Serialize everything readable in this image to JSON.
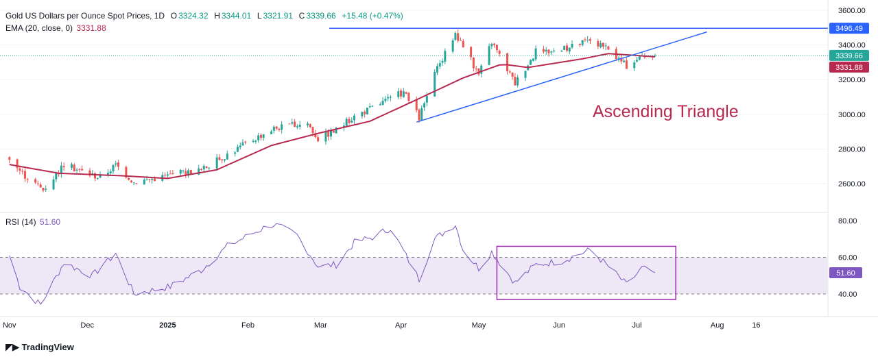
{
  "header": {
    "symbol": "Gold US Dollars per Ounce Spot Prices, 1D",
    "open_label": "O",
    "open": "3324.32",
    "high_label": "H",
    "high": "3344.01",
    "low_label": "L",
    "low": "3321.91",
    "close_label": "C",
    "close": "3339.66",
    "change": "+15.48 (+0.47%)",
    "ema_label": "EMA (20, close, 0)",
    "ema_value": "3331.88",
    "rsi_label": "RSI (14)",
    "rsi_value": "51.60"
  },
  "branding": {
    "logo_text": "TradingView"
  },
  "colors": {
    "up": "#26a69a",
    "down": "#ef5350",
    "ema": "#b7294f",
    "trend": "#2962ff",
    "rsi": "#7e57c2",
    "rsi_band": "#ede7f6",
    "annotation": "#b7294f"
  },
  "chart_data": [
    {
      "type": "candlestick",
      "title": "Gold US Dollars per Ounce Spot Prices, 1D",
      "y_ticks": [
        "2600.00",
        "2800.00",
        "3000.00",
        "3200.00",
        "3400.00",
        "3600.00"
      ],
      "ylim": [
        2450,
        3600
      ],
      "x_ticks": [
        "Nov",
        "Dec",
        "2025",
        "Feb",
        "Mar",
        "Apr",
        "May",
        "Jun",
        "Jul",
        "Aug",
        "16"
      ],
      "price_labels": {
        "resistance": "3496.49",
        "last": "3339.66",
        "ema": "3331.88"
      },
      "annotation": "Ascending Triangle",
      "resistance_level": 3496.49,
      "trendline": {
        "from": [
          "2025-04-07",
          2955
        ],
        "to": [
          "2025-07-28",
          3475
        ]
      },
      "ema_series_anchors": [
        [
          "2024-11-01",
          2710
        ],
        [
          "2024-11-20",
          2660
        ],
        [
          "2024-12-15",
          2645
        ],
        [
          "2025-01-01",
          2630
        ],
        [
          "2025-01-20",
          2680
        ],
        [
          "2025-02-10",
          2820
        ],
        [
          "2025-02-28",
          2890
        ],
        [
          "2025-03-20",
          2960
        ],
        [
          "2025-04-05",
          3070
        ],
        [
          "2025-04-25",
          3210
        ],
        [
          "2025-05-10",
          3290
        ],
        [
          "2025-05-20",
          3270
        ],
        [
          "2025-06-10",
          3320
        ],
        [
          "2025-06-20",
          3350
        ],
        [
          "2025-07-08",
          3331.88
        ]
      ],
      "close_anchors": [
        [
          "2024-11-01",
          2745
        ],
        [
          "2024-11-06",
          2660
        ],
        [
          "2024-11-14",
          2565
        ],
        [
          "2024-11-22",
          2710
        ],
        [
          "2024-12-06",
          2635
        ],
        [
          "2024-12-12",
          2710
        ],
        [
          "2024-12-19",
          2610
        ],
        [
          "2025-01-02",
          2650
        ],
        [
          "2025-01-14",
          2680
        ],
        [
          "2025-01-24",
          2770
        ],
        [
          "2025-02-07",
          2890
        ],
        [
          "2025-02-11",
          2920
        ],
        [
          "2025-02-24",
          2950
        ],
        [
          "2025-02-28",
          2860
        ],
        [
          "2025-03-07",
          2910
        ],
        [
          "2025-03-14",
          2990
        ],
        [
          "2025-03-21",
          3040
        ],
        [
          "2025-04-02",
          3130
        ],
        [
          "2025-04-08",
          2980
        ],
        [
          "2025-04-14",
          3230
        ],
        [
          "2025-04-22",
          3470
        ],
        [
          "2025-05-01",
          3230
        ],
        [
          "2025-05-06",
          3420
        ],
        [
          "2025-05-15",
          3180
        ],
        [
          "2025-05-23",
          3360
        ],
        [
          "2025-06-02",
          3370
        ],
        [
          "2025-06-13",
          3430
        ],
        [
          "2025-06-20",
          3370
        ],
        [
          "2025-06-27",
          3280
        ],
        [
          "2025-07-03",
          3340
        ],
        [
          "2025-07-08",
          3339.66
        ]
      ],
      "series": [
        {
          "name": "EMA (20, close, 0)"
        }
      ]
    },
    {
      "type": "line",
      "title": "RSI (14)",
      "y_ticks": [
        "40.00",
        "60.00",
        "80.00"
      ],
      "ylim": [
        30,
        83
      ],
      "band": [
        40,
        60
      ],
      "last_value": "51.60",
      "highlight_box": {
        "from": "2025-05-08",
        "to": "2025-07-16",
        "ylim": [
          37,
          66
        ]
      },
      "values_anchors": [
        [
          "2024-11-01",
          61
        ],
        [
          "2024-11-05",
          44
        ],
        [
          "2024-11-13",
          34
        ],
        [
          "2024-11-22",
          57
        ],
        [
          "2024-12-03",
          50
        ],
        [
          "2024-12-12",
          62
        ],
        [
          "2024-12-19",
          40
        ],
        [
          "2025-01-02",
          44
        ],
        [
          "2025-01-14",
          53
        ],
        [
          "2025-01-24",
          66
        ],
        [
          "2025-02-07",
          76
        ],
        [
          "2025-02-11",
          78
        ],
        [
          "2025-02-20",
          72
        ],
        [
          "2025-02-28",
          55
        ],
        [
          "2025-03-07",
          56
        ],
        [
          "2025-03-14",
          68
        ],
        [
          "2025-03-21",
          71
        ],
        [
          "2025-03-28",
          76
        ],
        [
          "2025-04-08",
          48
        ],
        [
          "2025-04-14",
          70
        ],
        [
          "2025-04-22",
          78
        ],
        [
          "2025-04-25",
          64
        ],
        [
          "2025-05-01",
          54
        ],
        [
          "2025-05-06",
          63
        ],
        [
          "2025-05-15",
          46
        ],
        [
          "2025-05-23",
          56
        ],
        [
          "2025-06-02",
          58
        ],
        [
          "2025-06-13",
          64
        ],
        [
          "2025-06-20",
          55
        ],
        [
          "2025-06-27",
          45
        ],
        [
          "2025-07-03",
          54
        ],
        [
          "2025-07-08",
          51.6
        ]
      ]
    }
  ]
}
